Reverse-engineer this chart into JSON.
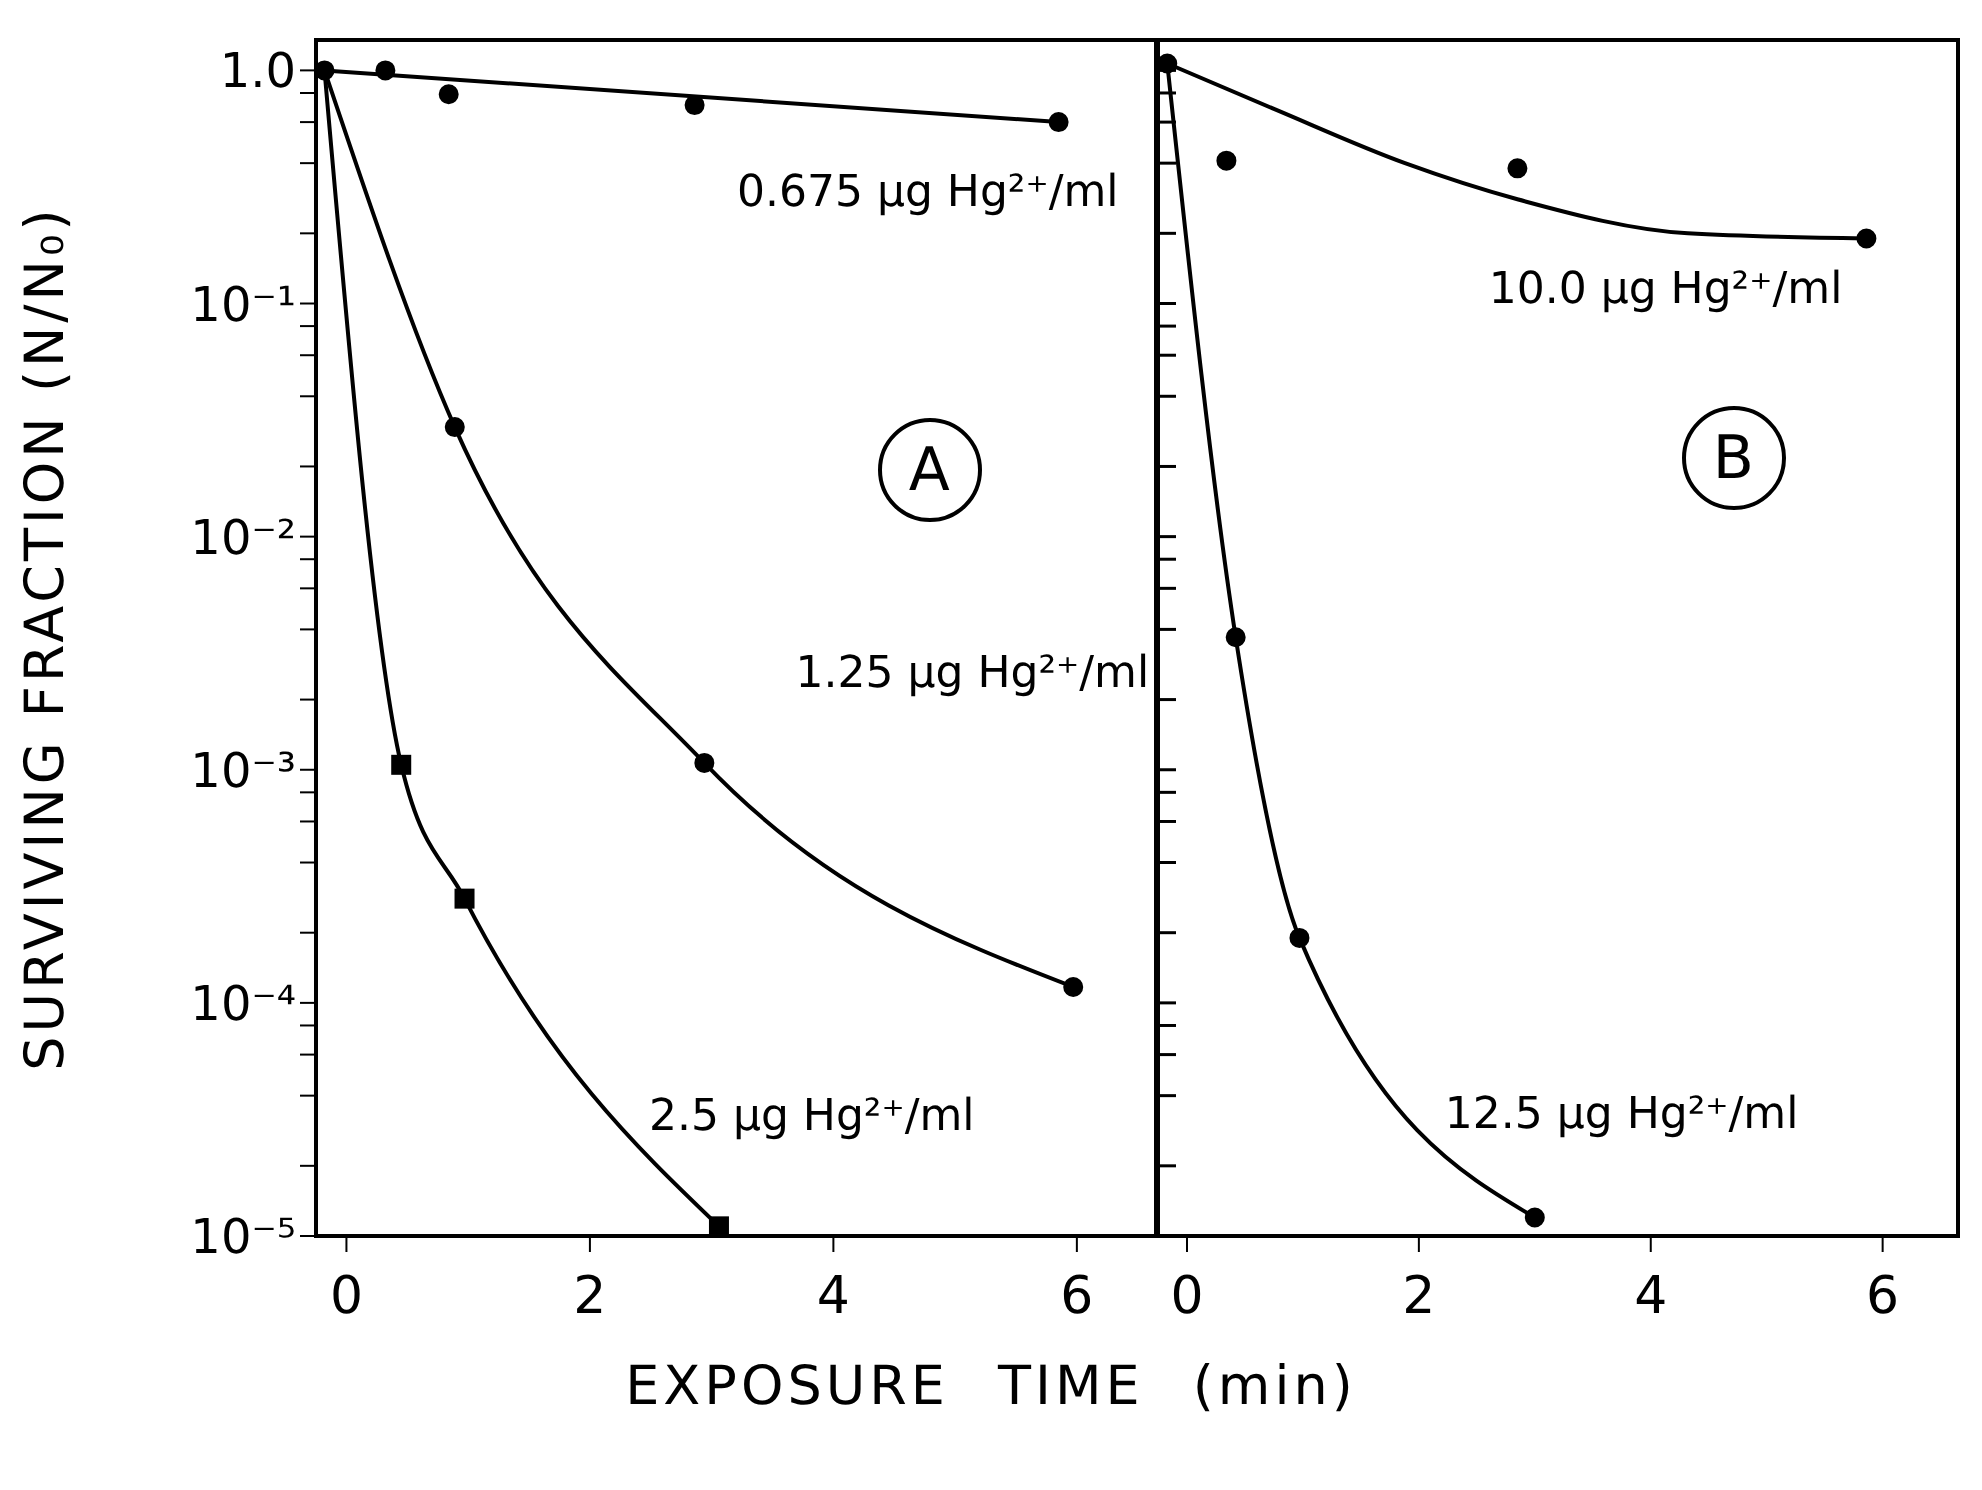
{
  "chart_data": [
    {
      "type": "line",
      "ylabel": "SURVIVING FRACTION (N/N₀)",
      "xlabel": "EXPOSURE TIME (min)",
      "annotations": [
        "A"
      ],
      "log": "y",
      "legend": false,
      "grid": false,
      "xlim": [
        -0.25,
        6.65
      ],
      "xticks": [
        0,
        2,
        4,
        6
      ],
      "ylim": [
        1e-05,
        1.35
      ],
      "yticks": [
        {
          "value": 1,
          "label": "1.0"
        },
        {
          "value": 0.8,
          "label": null
        },
        {
          "value": 0.6,
          "label": null
        },
        {
          "value": 0.4,
          "label": null
        },
        {
          "value": 0.2,
          "label": null
        },
        {
          "value": 0.1,
          "label": "10⁻¹"
        },
        {
          "value": 0.08,
          "label": null
        },
        {
          "value": 0.06,
          "label": null
        },
        {
          "value": 0.04,
          "label": null
        },
        {
          "value": 0.02,
          "label": null
        },
        {
          "value": 0.01,
          "label": "10⁻²"
        },
        {
          "value": 0.008,
          "label": null
        },
        {
          "value": 0.006,
          "label": null
        },
        {
          "value": 0.004,
          "label": null
        },
        {
          "value": 0.002,
          "label": null
        },
        {
          "value": 0.001,
          "label": "10⁻³"
        },
        {
          "value": 0.0008,
          "label": null
        },
        {
          "value": 0.0006,
          "label": null
        },
        {
          "value": 0.0004,
          "label": null
        },
        {
          "value": 0.0002,
          "label": null
        },
        {
          "value": 0.0001,
          "label": "10⁻⁴"
        },
        {
          "value": 8e-05,
          "label": null
        },
        {
          "value": 6e-05,
          "label": null
        },
        {
          "value": 4e-05,
          "label": null
        },
        {
          "value": 2e-05,
          "label": null
        },
        {
          "value": 1e-05,
          "label": "10⁻⁵"
        }
      ],
      "series": [
        {
          "name": "0.675 μg Hg²⁺/ml",
          "type": "scatter",
          "marker": "circle",
          "color": "#000000",
          "x": [
            -0.18,
            0.32,
            0.84,
            2.86,
            5.85
          ],
          "values": [
            1.0,
            1.0,
            0.79,
            0.71,
            0.6
          ]
        },
        {
          "type": "line",
          "marker": "none",
          "color": "#000000",
          "x": [
            -0.18,
            5.85
          ],
          "values": [
            1.0,
            0.6
          ]
        },
        {
          "name": "1.25 μg Hg²⁺/ml",
          "type": "line",
          "marker": "circle",
          "color": "#000000",
          "x": [
            -0.18,
            0.89,
            2.94,
            5.97
          ],
          "values": [
            1.0,
            0.0295,
            0.00107,
            0.000117
          ]
        },
        {
          "name": "2.5 μg Hg²⁺/ml",
          "type": "line",
          "marker": "square",
          "color": "#000000",
          "x": [
            -0.18,
            0.45,
            0.97,
            3.06
          ],
          "values": [
            1.0,
            0.00105,
            0.00028,
            1.1e-05
          ]
        }
      ]
    },
    {
      "type": "line",
      "annotations": [
        "B"
      ],
      "log": "y",
      "legend": false,
      "grid": false,
      "tick_labels": "x",
      "xlim": [
        -0.25,
        6.65
      ],
      "xticks": [
        0,
        2,
        4,
        6
      ],
      "ylim": [
        1e-05,
        1.35
      ],
      "yticks": [
        {
          "value": 1,
          "label": null
        },
        {
          "value": 0.8,
          "label": null
        },
        {
          "value": 0.6,
          "label": null
        },
        {
          "value": 0.4,
          "label": null
        },
        {
          "value": 0.2,
          "label": null
        },
        {
          "value": 0.1,
          "label": null
        },
        {
          "value": 0.08,
          "label": null
        },
        {
          "value": 0.06,
          "label": null
        },
        {
          "value": 0.04,
          "label": null
        },
        {
          "value": 0.02,
          "label": null
        },
        {
          "value": 0.01,
          "label": null
        },
        {
          "value": 0.008,
          "label": null
        },
        {
          "value": 0.006,
          "label": null
        },
        {
          "value": 0.004,
          "label": null
        },
        {
          "value": 0.002,
          "label": null
        },
        {
          "value": 0.001,
          "label": null
        },
        {
          "value": 0.0008,
          "label": null
        },
        {
          "value": 0.0006,
          "label": null
        },
        {
          "value": 0.0004,
          "label": null
        },
        {
          "value": 0.0002,
          "label": null
        },
        {
          "value": 0.0001,
          "label": null
        },
        {
          "value": 8e-05,
          "label": null
        },
        {
          "value": 6e-05,
          "label": null
        },
        {
          "value": 4e-05,
          "label": null
        },
        {
          "value": 2e-05,
          "label": null
        },
        {
          "value": 1e-05,
          "label": null
        }
      ],
      "series": [
        {
          "name": "10.0 μg Hg²⁺/ml",
          "type": "scatter",
          "marker": "circle",
          "color": "#000000",
          "x": [
            -0.17,
            0.34,
            2.85,
            5.86
          ],
          "values": [
            1.07,
            0.41,
            0.38,
            0.19
          ]
        },
        {
          "type": "line",
          "marker": "none",
          "color": "#000000",
          "x": [
            -0.17,
            0.76,
            1.88,
            2.85,
            4.32,
            5.86
          ],
          "values": [
            1.07,
            0.68,
            0.4,
            0.28,
            0.2,
            0.19
          ]
        },
        {
          "name": "12.5 μg Hg²⁺/ml",
          "type": "line",
          "marker": "circle",
          "color": "#000000",
          "x": [
            -0.17,
            0.42,
            0.97,
            3.0
          ],
          "values": [
            1.07,
            0.0037,
            0.00019,
            1.2e-05
          ]
        }
      ]
    }
  ]
}
